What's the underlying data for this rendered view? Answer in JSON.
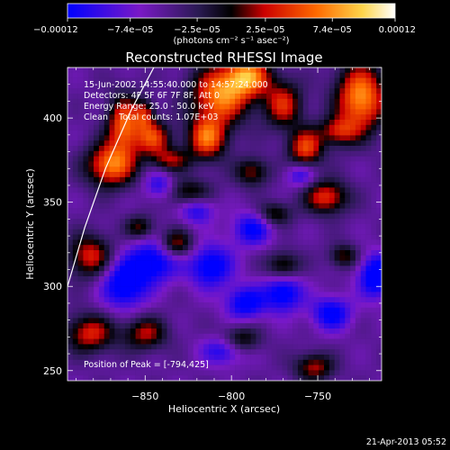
{
  "chart_data": {
    "type": "heatmap",
    "title": "Reconstructed RHESSI Image",
    "xlabel": "Heliocentric X (arcsec)",
    "ylabel": "Heliocentric Y (arcsec)",
    "x_range": [
      -895,
      -713
    ],
    "y_range": [
      244,
      430
    ],
    "x_ticks": [
      -850,
      -800,
      -750
    ],
    "y_ticks": [
      250,
      300,
      350,
      400
    ],
    "x_tick_labels": [
      "−850",
      "−800",
      "−750"
    ],
    "y_tick_labels": [
      "250",
      "300",
      "350",
      "400"
    ],
    "colorbar": {
      "range": [
        -0.00012,
        0.00012
      ],
      "tick_values": [
        -0.00012,
        -7.4e-05,
        -2.5e-05,
        2.5e-05,
        7.4e-05,
        0.00012
      ],
      "tick_labels": [
        "−0.00012",
        "−7.4e−05",
        "−2.5e−05",
        "2.5e−05",
        "7.4e−05",
        "0.00012"
      ],
      "units": "(photons cm⁻² s⁻¹ asec⁻²)",
      "colors": [
        "#0000ff",
        "#7a19c6",
        "#2a1a52",
        "#000000",
        "#cc0000",
        "#ff6a00",
        "#ffd54a",
        "#ffffff"
      ]
    },
    "annotations": [
      "15-Jun-2002 14:55:40.000 to 14:57:24.000",
      "Detectors: 4F 5F 6F 7F 8F, Att 0",
      "Energy Range: 25.0 - 50.0 keV",
      "Clean    Total counts: 1.07E+03",
      "Position of Peak = [-794,425]"
    ],
    "peak": {
      "x": -794,
      "y": 425
    },
    "limb_curve": [
      [
        -895,
        300
      ],
      [
        -885,
        335
      ],
      [
        -873,
        370
      ],
      [
        -858,
        405
      ],
      [
        -845,
        430
      ]
    ],
    "blobs": [
      {
        "x": -862,
        "y": 396,
        "sx": 7,
        "sy": 12,
        "a": 0.9
      },
      {
        "x": -870,
        "y": 372,
        "sx": 10,
        "sy": 9,
        "a": 0.95
      },
      {
        "x": -845,
        "y": 388,
        "sx": 7,
        "sy": 7,
        "a": 0.75
      },
      {
        "x": -850,
        "y": 402,
        "sx": 4,
        "sy": 6,
        "a": 0.55
      },
      {
        "x": -814,
        "y": 388,
        "sx": 8,
        "sy": 9,
        "a": 0.9
      },
      {
        "x": -835,
        "y": 375,
        "sx": 8,
        "sy": 5,
        "a": 0.55
      },
      {
        "x": -824,
        "y": 355,
        "sx": 9,
        "sy": 6,
        "a": 0.55
      },
      {
        "x": -806,
        "y": 414,
        "sx": 12,
        "sy": 12,
        "a": 1.0
      },
      {
        "x": -790,
        "y": 425,
        "sx": 9,
        "sy": 8,
        "a": 0.9
      },
      {
        "x": -770,
        "y": 408,
        "sx": 8,
        "sy": 10,
        "a": 0.7
      },
      {
        "x": -757,
        "y": 382,
        "sx": 7,
        "sy": 8,
        "a": 0.8
      },
      {
        "x": -745,
        "y": 353,
        "sx": 9,
        "sy": 7,
        "a": 0.75
      },
      {
        "x": -725,
        "y": 412,
        "sx": 10,
        "sy": 14,
        "a": 1.05
      },
      {
        "x": -738,
        "y": 392,
        "sx": 8,
        "sy": 6,
        "a": 0.6
      },
      {
        "x": -788,
        "y": 368,
        "sx": 7,
        "sy": 6,
        "a": 0.55
      },
      {
        "x": -775,
        "y": 343,
        "sx": 7,
        "sy": 5,
        "a": 0.5
      },
      {
        "x": -853,
        "y": 335,
        "sx": 6,
        "sy": 5,
        "a": 0.5
      },
      {
        "x": -832,
        "y": 325,
        "sx": 7,
        "sy": 6,
        "a": 0.65
      },
      {
        "x": -770,
        "y": 312,
        "sx": 7,
        "sy": 6,
        "a": 0.55
      },
      {
        "x": -735,
        "y": 318,
        "sx": 6,
        "sy": 5,
        "a": 0.5
      },
      {
        "x": -882,
        "y": 318,
        "sx": 9,
        "sy": 9,
        "a": 0.7
      },
      {
        "x": -882,
        "y": 272,
        "sx": 10,
        "sy": 8,
        "a": 0.7
      },
      {
        "x": -850,
        "y": 272,
        "sx": 9,
        "sy": 7,
        "a": 0.6
      },
      {
        "x": -795,
        "y": 268,
        "sx": 8,
        "sy": 6,
        "a": 0.55
      },
      {
        "x": -752,
        "y": 252,
        "sx": 8,
        "sy": 6,
        "a": 0.6
      },
      {
        "x": -862,
        "y": 301,
        "sx": 9,
        "sy": 10,
        "a": -0.75
      },
      {
        "x": -845,
        "y": 315,
        "sx": 10,
        "sy": 9,
        "a": -0.7
      },
      {
        "x": -812,
        "y": 312,
        "sx": 9,
        "sy": 9,
        "a": -0.7
      },
      {
        "x": -792,
        "y": 290,
        "sx": 8,
        "sy": 7,
        "a": -0.65
      },
      {
        "x": -770,
        "y": 296,
        "sx": 8,
        "sy": 8,
        "a": -0.7
      },
      {
        "x": -742,
        "y": 284,
        "sx": 8,
        "sy": 7,
        "a": -0.65
      },
      {
        "x": -716,
        "y": 306,
        "sx": 7,
        "sy": 9,
        "a": -0.8
      },
      {
        "x": -788,
        "y": 334,
        "sx": 8,
        "sy": 7,
        "a": -0.6
      },
      {
        "x": -820,
        "y": 346,
        "sx": 7,
        "sy": 6,
        "a": -0.55
      },
      {
        "x": -804,
        "y": 262,
        "sx": 9,
        "sy": 6,
        "a": -0.55
      },
      {
        "x": -842,
        "y": 360,
        "sx": 6,
        "sy": 6,
        "a": -0.45
      },
      {
        "x": -760,
        "y": 366,
        "sx": 6,
        "sy": 5,
        "a": -0.45
      }
    ]
  }
}
